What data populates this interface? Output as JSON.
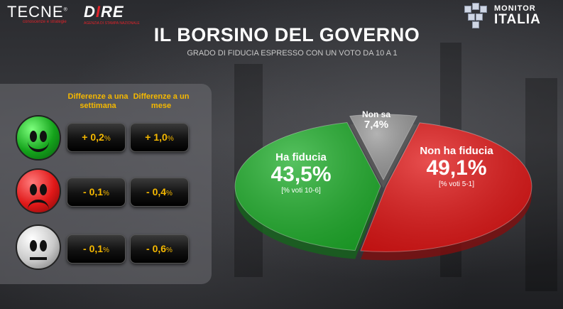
{
  "header": {
    "tecne_name": "TECNE",
    "tecne_mark": "®",
    "tecne_tagline": "conoscenze e strategie",
    "dire_name_a": "D",
    "dire_name_b": "I",
    "dire_name_c": "RE",
    "dire_tagline": "AGENZIA DI STAMPA NAZIONALE",
    "monitor_word1": "MONITOR",
    "monitor_word2": "ITALIA"
  },
  "title": "IL BORSINO DEL GOVERNO",
  "subtitle": "GRADO DI FIDUCIA ESPRESSO CON UN VOTO DA 10  A 1",
  "table": {
    "col_week": "Differenze a una settimana",
    "col_month": "Differenze a un mese",
    "rows": [
      {
        "face": "happy-face-icon",
        "week": "+ 0,2",
        "month": "+ 1,0"
      },
      {
        "face": "sad-face-icon",
        "week": "- 0,1",
        "month": "- 0,4"
      },
      {
        "face": "neutral-face-icon",
        "week": "- 0,1",
        "month": "- 0,6"
      }
    ],
    "unit": "%"
  },
  "colors": {
    "fiducia": "#1fae2b",
    "non_fiducia": "#e01414",
    "non_sa": "#9a9a9a",
    "accent": "#f5b800"
  },
  "chart_data": {
    "type": "pie",
    "title": "IL BORSINO DEL GOVERNO",
    "slices": [
      {
        "label": "Ha fiducia",
        "value": 43.5,
        "value_label": "43,5%",
        "note": "[% voti 10-6]"
      },
      {
        "label": "Non ha fiducia",
        "value": 49.1,
        "value_label": "49,1%",
        "note": "[% voti 5-1]"
      },
      {
        "label": "Non sa",
        "value": 7.4,
        "value_label": "7,4%",
        "note": ""
      }
    ]
  }
}
